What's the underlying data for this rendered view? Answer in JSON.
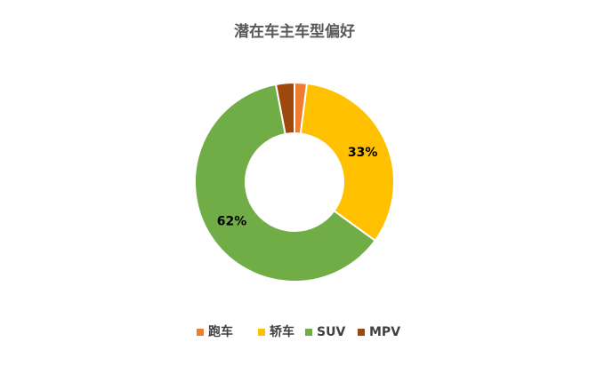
{
  "chart_data": {
    "type": "donut",
    "title": "潜在车主车型偏好",
    "categories": [
      "跑车",
      "轿车",
      "SUV",
      "MPV"
    ],
    "values": [
      2,
      33,
      62,
      3
    ],
    "value_labels": [
      null,
      "33%",
      "62%",
      null
    ],
    "colors": [
      "#ED7D31",
      "#FFC000",
      "#70AD47",
      "#9E480E"
    ],
    "legend": "bottom"
  }
}
